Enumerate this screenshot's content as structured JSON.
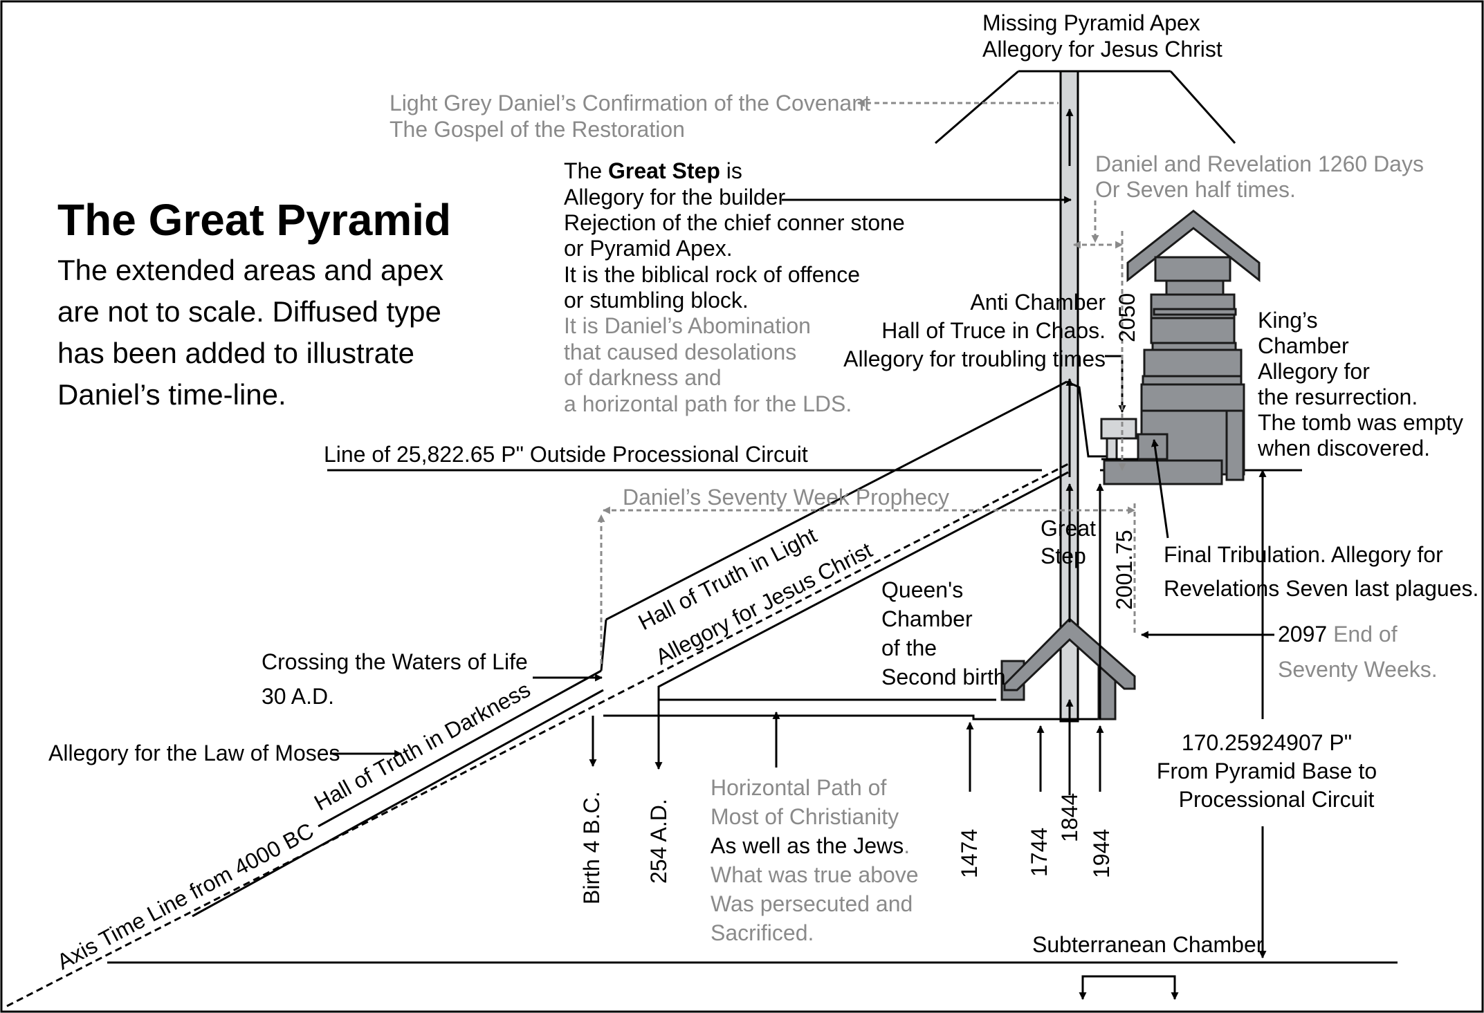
{
  "title": "The Great Pyramid",
  "subtitle_lines": [
    "The extended areas and apex",
    "are not to scale. Diffused type",
    "has been added to illustrate",
    "Daniel’s time-line."
  ],
  "apex": [
    "Missing Pyramid Apex",
    "Allegory for Jesus Christ"
  ],
  "covenant": [
    "Light Grey Daniel’s Confirmation of the Covenant",
    "The Gospel of the Restoration"
  ],
  "great_step_block": {
    "l1_pre": "The ",
    "l1_bold": "Great Step",
    "l1_post": " is",
    "black": [
      "Allegory for the builder",
      "Rejection of the chief conner stone",
      "or Pyramid Apex.",
      "It is the biblical rock of offence",
      "or stumbling block."
    ],
    "grey": [
      "It is Daniel’s Abomination",
      "that caused desolations",
      "of darkness and",
      "a horizontal path for the LDS."
    ]
  },
  "daniel_rev": [
    "Daniel and Revelation 1260 Days",
    "Or Seven half times."
  ],
  "anti_chamber": [
    "Anti Chamber",
    "Hall of Truce in Chaos.",
    "Allegory for troubling times"
  ],
  "kings_chamber": [
    "King’s",
    "Chamber",
    "Allegory for",
    "the resurrection.",
    "The tomb was empty",
    "when discovered."
  ],
  "outside_circuit": "Line of 25,822.65 P\" Outside Processional Circuit",
  "seventy_week": "Daniel’s Seventy Week Prophecy",
  "great_step_label": [
    "Great",
    "Step"
  ],
  "queens_chamber": [
    "Queen's",
    "Chamber",
    "of the",
    "Second birth"
  ],
  "final_tribulation": [
    "Final Tribulation. Allegory for",
    "Revelations Seven last plagues."
  ],
  "end_seventy": {
    "black": "2097",
    "grey1": " End of",
    "grey2": "Seventy Weeks."
  },
  "hall_light": "Hall of Truth in Light",
  "allegory_christ": "Allegory for Jesus Christ",
  "crossing": [
    "Crossing the Waters of Life",
    "30 A.D."
  ],
  "law_moses": "Allegory for the Law of Moses",
  "hall_darkness": "Hall of Truth in Darkness",
  "axis_line": "Axis Time Line from 4000 BC",
  "horizontal_path": {
    "grey1": [
      "Horizontal Path of",
      "Most of Christianity"
    ],
    "black": "As well as the Jews",
    "grey_dot": ".",
    "grey2": [
      "What was true above",
      "Was persecuted and",
      "Sacrificed."
    ]
  },
  "base_measure": [
    "170.25924907 P\"",
    "From Pyramid Base to",
    "Processional Circuit"
  ],
  "subterranean": "Subterranean Chamber",
  "vertical_labels": {
    "birth": "Birth 4 B.C.",
    "ad254": "254 A.D.",
    "y1474": "1474",
    "y1744": "1744",
    "y1844": "1844",
    "y1944": "1944",
    "y2050": "2050",
    "y2001": "2001.75"
  },
  "colors": {
    "ink": "#000000",
    "grey_text": "#8a8a8a",
    "stone_fill": "#8f9296",
    "shaft_fill": "#d4d6d8",
    "stone_stroke": "#1a1a1a"
  }
}
